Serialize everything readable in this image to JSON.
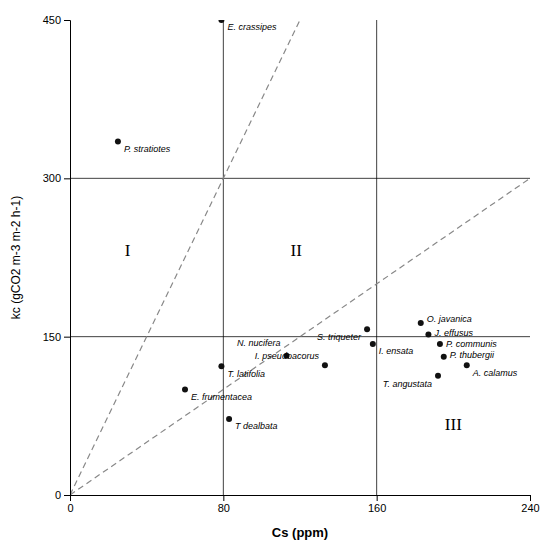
{
  "chart_data": {
    "type": "scatter",
    "x_label": "Cs (ppm)",
    "y_label": "kc (gCO2 m-3 m-2 h-1)",
    "xlim": [
      0,
      240
    ],
    "ylim": [
      0,
      450
    ],
    "xticks": [
      0,
      80,
      160,
      240
    ],
    "yticks": [
      0,
      150,
      300,
      450
    ],
    "grid": false,
    "color": "#111111",
    "labels": [
      "E. crassipes",
      "P. stratiotes",
      "T. latifolia",
      "E. frumentacea",
      "T dealbata",
      "N. nucifera",
      "I. pseudoacorus",
      "S. triqueter",
      "I. ensata",
      "O. javanica",
      "J. effusus",
      "P. communis",
      "P. thubergii",
      "A. calamus",
      "T. angustata"
    ],
    "x": [
      79,
      25,
      79,
      60,
      83,
      113,
      133,
      155,
      158,
      183,
      187,
      193,
      195,
      207,
      192
    ],
    "values": [
      450,
      335,
      122,
      100,
      72,
      132,
      123,
      157,
      143,
      163,
      152,
      143,
      131,
      123,
      113
    ],
    "vlines": [
      80,
      160
    ],
    "hlines": [
      150,
      300
    ],
    "lines": [
      {
        "x": [
          0,
          120
        ],
        "values": [
          0,
          450
        ],
        "line_style": "dashed",
        "color": "#888888"
      },
      {
        "x": [
          0,
          240
        ],
        "values": [
          0,
          300
        ],
        "line_style": "dashed",
        "color": "#888888"
      }
    ],
    "region_labels": [
      {
        "text": "I",
        "x": 30,
        "y": 230
      },
      {
        "text": "II",
        "x": 118,
        "y": 230
      },
      {
        "text": "III",
        "x": 200,
        "y": 65
      }
    ]
  }
}
